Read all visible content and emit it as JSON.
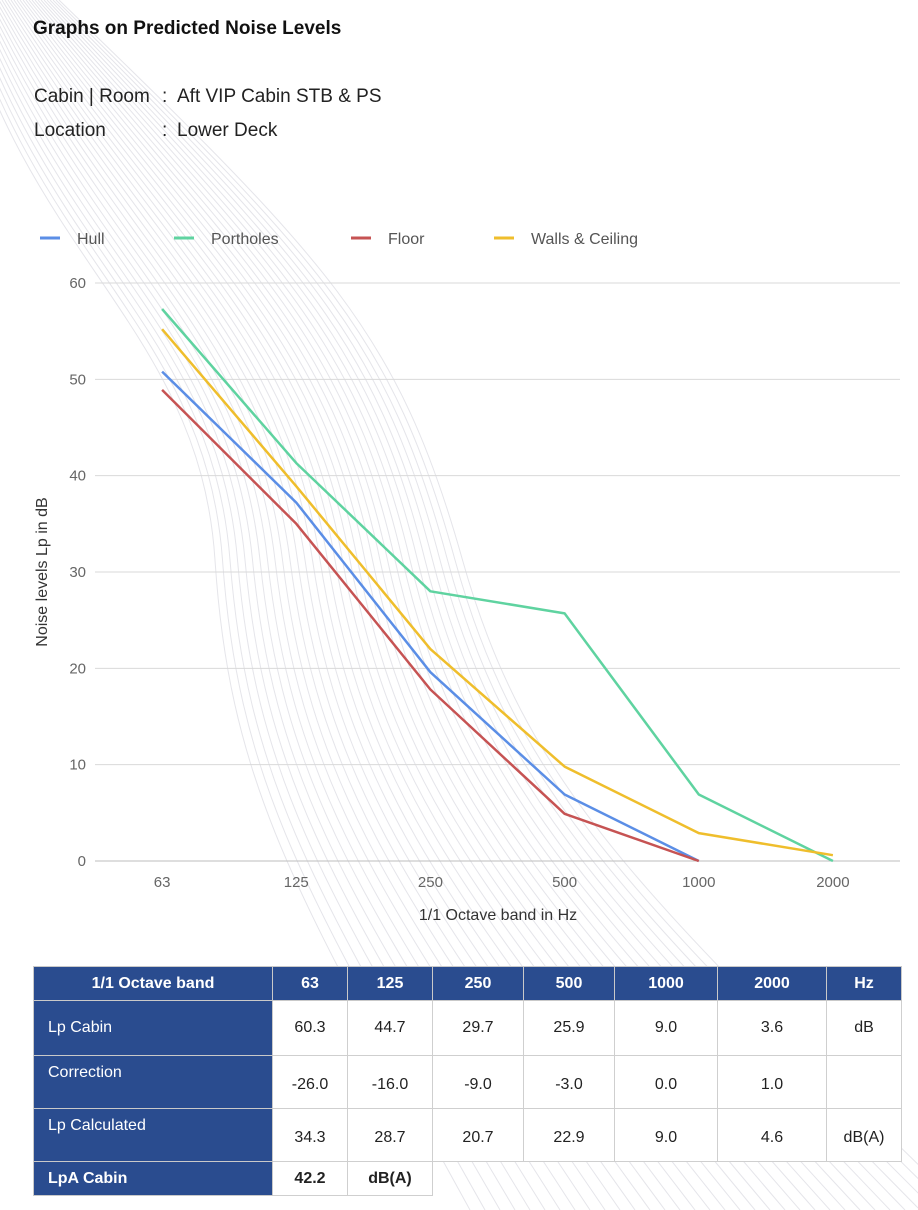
{
  "page": {
    "title": "Graphs on Predicted Noise Levels",
    "info": [
      {
        "label": "Cabin | Room",
        "sep": ":",
        "value": "Aft VIP Cabin STB & PS"
      },
      {
        "label": "Location",
        "sep": ":",
        "value": "Lower Deck"
      }
    ]
  },
  "chart_data": {
    "type": "line",
    "title": "",
    "xlabel": "1/1 Octave band in Hz",
    "ylabel": "Noise levels Lp in dB",
    "categories": [
      "63",
      "125",
      "250",
      "500",
      "1000",
      "2000"
    ],
    "ylim": [
      0,
      60
    ],
    "yticks": [
      0,
      10,
      20,
      30,
      40,
      50,
      60
    ],
    "grid": true,
    "legend": "top-left",
    "series": [
      {
        "name": "Hull",
        "color": "#5b8ee6",
        "values": [
          50.8,
          37.2,
          19.6,
          6.9,
          0.0,
          null
        ]
      },
      {
        "name": "Portholes",
        "color": "#5fd3a0",
        "values": [
          57.3,
          41.3,
          28.0,
          25.7,
          6.9,
          0.0
        ]
      },
      {
        "name": "Floor",
        "color": "#c65353",
        "values": [
          48.9,
          35.0,
          17.8,
          4.9,
          0.0,
          null
        ]
      },
      {
        "name": "Walls & Ceiling",
        "color": "#efbe2c",
        "values": [
          55.2,
          38.9,
          22.0,
          9.8,
          2.9,
          0.6
        ]
      }
    ]
  },
  "table": {
    "header": [
      "1/1 Octave band",
      "63",
      "125",
      "250",
      "500",
      "1000",
      "2000",
      "Hz"
    ],
    "rows": [
      {
        "label": "Lp Cabin",
        "cells": [
          "60.3",
          "44.7",
          "29.7",
          "25.9",
          "9.0",
          "3.6",
          "dB"
        ]
      },
      {
        "label": "Correction",
        "cells": [
          "-26.0",
          "-16.0",
          "-9.0",
          "-3.0",
          "0.0",
          "1.0",
          ""
        ]
      },
      {
        "label": "Lp Calculated",
        "cells": [
          "34.3",
          "28.7",
          "20.7",
          "22.9",
          "9.0",
          "4.6",
          "dB(A)"
        ]
      }
    ],
    "total": {
      "label": "LpA Cabin",
      "value": "42.2",
      "unit": "dB(A)"
    }
  },
  "colors": {
    "table_header": "#2a4c8f",
    "grid": "#d9d9d9",
    "axis_text": "#666666"
  }
}
